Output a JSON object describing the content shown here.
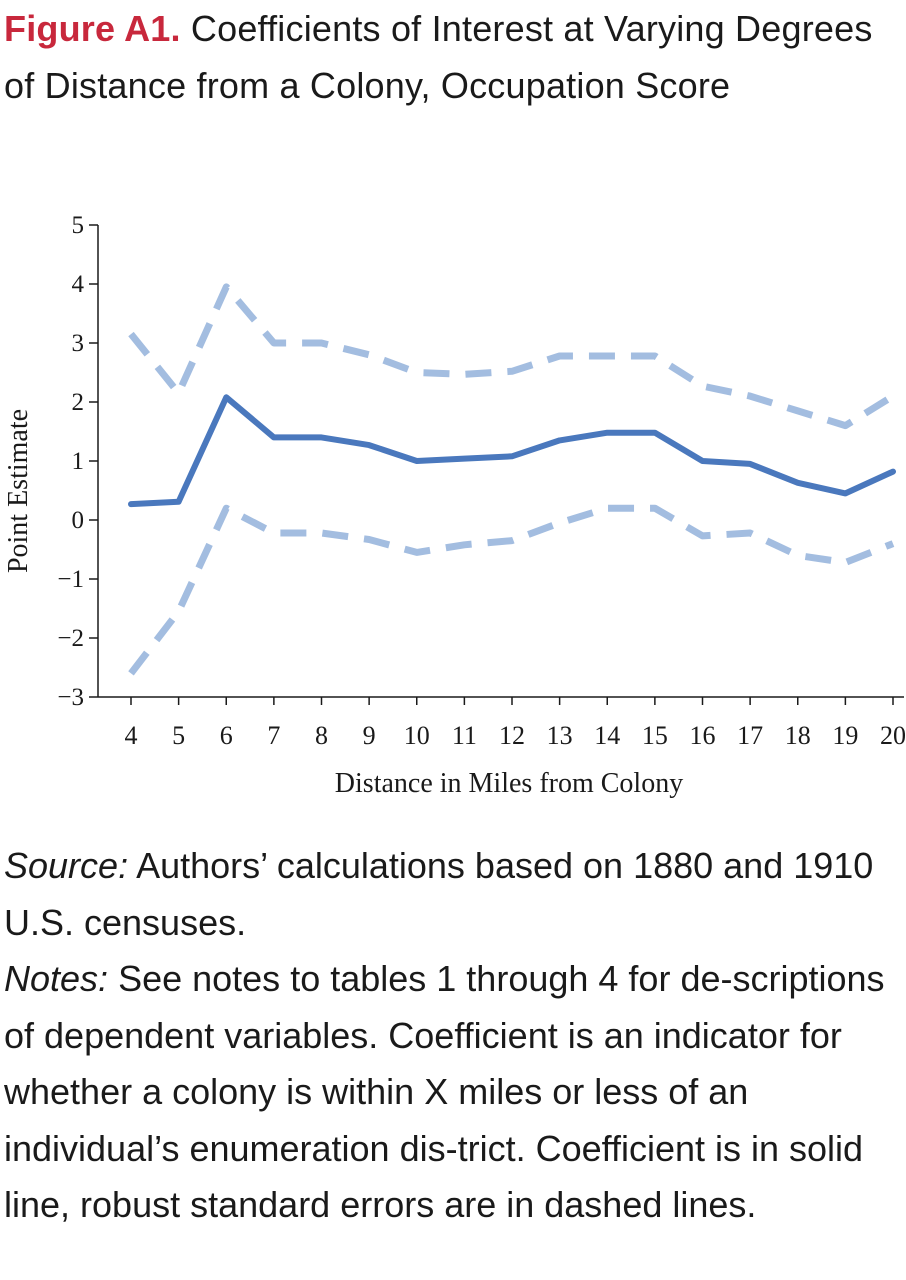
{
  "title": {
    "label": "Figure A1.",
    "text": "Coefficients of Interest at Varying Degrees of Distance from a Colony, Occupation Score"
  },
  "source": {
    "lead": "Source:",
    "text": "Authors’ calculations based on 1880 and 1910 U.S. censuses."
  },
  "notes": {
    "lead": "Notes:",
    "text": "See notes to tables 1 through 4 for de-scriptions of dependent variables. Coefficient is an indicator for whether a colony is within X miles or less of an individual’s enumeration dis-trict. Coefficient is in solid line, robust standard errors are in dashed lines."
  },
  "chart_data": {
    "type": "line",
    "title": "Coefficients of Interest at Varying Degrees of Distance from a Colony, Occupation Score",
    "xlabel": "Distance in Miles from Colony",
    "ylabel": "Point Estimate",
    "x": [
      4,
      5,
      6,
      7,
      8,
      9,
      10,
      11,
      12,
      13,
      14,
      15,
      16,
      17,
      18,
      19,
      20
    ],
    "xlim": [
      4,
      20
    ],
    "ylim": [
      -3,
      5
    ],
    "yticks": [
      -3,
      -2,
      -1,
      0,
      1,
      2,
      3,
      4,
      5
    ],
    "grid": false,
    "legend": "none",
    "series": [
      {
        "role": "coefficient",
        "style": "solid",
        "color": "#4a78bd",
        "values": [
          0.27,
          0.31,
          2.08,
          1.4,
          1.4,
          1.27,
          1.0,
          1.04,
          1.08,
          1.35,
          1.48,
          1.48,
          1.0,
          0.95,
          0.63,
          0.45,
          0.82
        ]
      },
      {
        "role": "upper bound",
        "style": "dashed",
        "color": "#a3bde0",
        "values": [
          3.15,
          2.15,
          3.95,
          3.0,
          3.0,
          2.8,
          2.5,
          2.47,
          2.52,
          2.78,
          2.78,
          2.78,
          2.27,
          2.1,
          1.85,
          1.6,
          2.1
        ]
      },
      {
        "role": "lower bound",
        "style": "dashed",
        "color": "#a3bde0",
        "values": [
          -2.6,
          -1.55,
          0.2,
          -0.22,
          -0.22,
          -0.33,
          -0.55,
          -0.42,
          -0.35,
          -0.05,
          0.2,
          0.2,
          -0.27,
          -0.22,
          -0.6,
          -0.72,
          -0.4
        ]
      }
    ]
  }
}
